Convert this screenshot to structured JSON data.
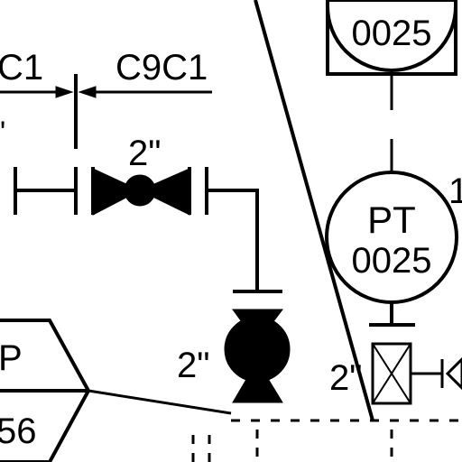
{
  "diagram": {
    "spec_break": {
      "left_spec": "C1",
      "right_spec": "C9C1"
    },
    "valve": {
      "size_label": "2\""
    },
    "pump_or_globe": {
      "size_label": "2\""
    },
    "transmitter": {
      "tag_type": "PT",
      "tag_number": "0025",
      "side_label": "1"
    },
    "display": {
      "tag_number": "0025"
    },
    "trap_hexagon": {
      "top_label": "P",
      "bottom_label": "56"
    },
    "filter": {
      "size_label": "2\""
    },
    "apostrophe_label": "\"",
    "colors": {
      "line": "#000000",
      "background": "#ffffff"
    }
  }
}
